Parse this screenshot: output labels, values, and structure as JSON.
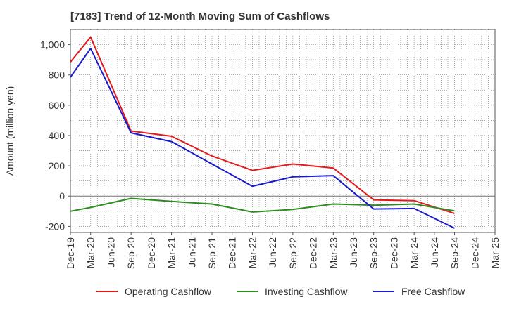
{
  "chart_data": {
    "type": "line",
    "title": "[7183]  Trend of 12-Month Moving Sum of Cashflows",
    "xlabel": "",
    "ylabel": "Amount (million yen)",
    "categories": [
      "Dec-19",
      "Mar-20",
      "Jun-20",
      "Sep-20",
      "Dec-20",
      "Mar-21",
      "Jun-21",
      "Sep-21",
      "Dec-21",
      "Mar-22",
      "Jun-22",
      "Sep-22",
      "Dec-22",
      "Mar-23",
      "Jun-23",
      "Sep-23",
      "Dec-23",
      "Mar-24",
      "Jun-24",
      "Sep-24",
      "Dec-24",
      "Mar-25"
    ],
    "ylim": [
      -240,
      1100
    ],
    "yticks": [
      -200,
      0,
      200,
      400,
      600,
      800,
      1000
    ],
    "ytick_labels": [
      "-200",
      "0",
      "200",
      "400",
      "600",
      "800",
      "1,000"
    ],
    "grid": true,
    "legend_position": "bottom",
    "series": [
      {
        "name": "Operating Cashflow",
        "color": "#e31a1c",
        "values": [
          885,
          1050,
          null,
          430,
          null,
          395,
          null,
          265,
          null,
          170,
          null,
          212,
          null,
          185,
          null,
          -25,
          null,
          -30,
          null,
          -115,
          null,
          null
        ]
      },
      {
        "name": "Investing Cashflow",
        "color": "#2e8b22",
        "values": [
          -100,
          -75,
          null,
          -15,
          null,
          -35,
          null,
          -52,
          null,
          -105,
          null,
          -88,
          null,
          -52,
          null,
          -60,
          null,
          -52,
          null,
          -98,
          null,
          null
        ]
      },
      {
        "name": "Free Cashflow",
        "color": "#1a1acd",
        "values": [
          785,
          975,
          null,
          418,
          null,
          360,
          null,
          212,
          null,
          65,
          null,
          127,
          null,
          135,
          null,
          -85,
          null,
          -82,
          null,
          -212,
          null,
          null
        ]
      }
    ]
  }
}
